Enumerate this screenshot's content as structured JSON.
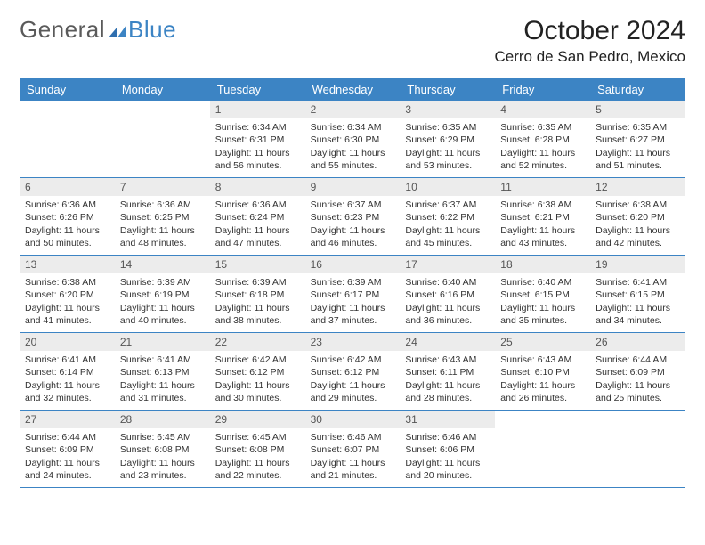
{
  "logo": {
    "general": "General",
    "blue": "Blue"
  },
  "header": {
    "title": "October 2024",
    "location": "Cerro de San Pedro, Mexico"
  },
  "colors": {
    "header_bg": "#3c84c4",
    "header_text": "#ffffff",
    "daynum_bg": "#ececec",
    "row_border": "#3c84c4",
    "logo_gray": "#5a5a5a",
    "logo_blue": "#3c84c4"
  },
  "weekdays": [
    "Sunday",
    "Monday",
    "Tuesday",
    "Wednesday",
    "Thursday",
    "Friday",
    "Saturday"
  ],
  "weeks": [
    [
      {
        "day": "",
        "sunrise": "",
        "sunset": "",
        "daylight": ""
      },
      {
        "day": "",
        "sunrise": "",
        "sunset": "",
        "daylight": ""
      },
      {
        "day": "1",
        "sunrise": "Sunrise: 6:34 AM",
        "sunset": "Sunset: 6:31 PM",
        "daylight": "Daylight: 11 hours and 56 minutes."
      },
      {
        "day": "2",
        "sunrise": "Sunrise: 6:34 AM",
        "sunset": "Sunset: 6:30 PM",
        "daylight": "Daylight: 11 hours and 55 minutes."
      },
      {
        "day": "3",
        "sunrise": "Sunrise: 6:35 AM",
        "sunset": "Sunset: 6:29 PM",
        "daylight": "Daylight: 11 hours and 53 minutes."
      },
      {
        "day": "4",
        "sunrise": "Sunrise: 6:35 AM",
        "sunset": "Sunset: 6:28 PM",
        "daylight": "Daylight: 11 hours and 52 minutes."
      },
      {
        "day": "5",
        "sunrise": "Sunrise: 6:35 AM",
        "sunset": "Sunset: 6:27 PM",
        "daylight": "Daylight: 11 hours and 51 minutes."
      }
    ],
    [
      {
        "day": "6",
        "sunrise": "Sunrise: 6:36 AM",
        "sunset": "Sunset: 6:26 PM",
        "daylight": "Daylight: 11 hours and 50 minutes."
      },
      {
        "day": "7",
        "sunrise": "Sunrise: 6:36 AM",
        "sunset": "Sunset: 6:25 PM",
        "daylight": "Daylight: 11 hours and 48 minutes."
      },
      {
        "day": "8",
        "sunrise": "Sunrise: 6:36 AM",
        "sunset": "Sunset: 6:24 PM",
        "daylight": "Daylight: 11 hours and 47 minutes."
      },
      {
        "day": "9",
        "sunrise": "Sunrise: 6:37 AM",
        "sunset": "Sunset: 6:23 PM",
        "daylight": "Daylight: 11 hours and 46 minutes."
      },
      {
        "day": "10",
        "sunrise": "Sunrise: 6:37 AM",
        "sunset": "Sunset: 6:22 PM",
        "daylight": "Daylight: 11 hours and 45 minutes."
      },
      {
        "day": "11",
        "sunrise": "Sunrise: 6:38 AM",
        "sunset": "Sunset: 6:21 PM",
        "daylight": "Daylight: 11 hours and 43 minutes."
      },
      {
        "day": "12",
        "sunrise": "Sunrise: 6:38 AM",
        "sunset": "Sunset: 6:20 PM",
        "daylight": "Daylight: 11 hours and 42 minutes."
      }
    ],
    [
      {
        "day": "13",
        "sunrise": "Sunrise: 6:38 AM",
        "sunset": "Sunset: 6:20 PM",
        "daylight": "Daylight: 11 hours and 41 minutes."
      },
      {
        "day": "14",
        "sunrise": "Sunrise: 6:39 AM",
        "sunset": "Sunset: 6:19 PM",
        "daylight": "Daylight: 11 hours and 40 minutes."
      },
      {
        "day": "15",
        "sunrise": "Sunrise: 6:39 AM",
        "sunset": "Sunset: 6:18 PM",
        "daylight": "Daylight: 11 hours and 38 minutes."
      },
      {
        "day": "16",
        "sunrise": "Sunrise: 6:39 AM",
        "sunset": "Sunset: 6:17 PM",
        "daylight": "Daylight: 11 hours and 37 minutes."
      },
      {
        "day": "17",
        "sunrise": "Sunrise: 6:40 AM",
        "sunset": "Sunset: 6:16 PM",
        "daylight": "Daylight: 11 hours and 36 minutes."
      },
      {
        "day": "18",
        "sunrise": "Sunrise: 6:40 AM",
        "sunset": "Sunset: 6:15 PM",
        "daylight": "Daylight: 11 hours and 35 minutes."
      },
      {
        "day": "19",
        "sunrise": "Sunrise: 6:41 AM",
        "sunset": "Sunset: 6:15 PM",
        "daylight": "Daylight: 11 hours and 34 minutes."
      }
    ],
    [
      {
        "day": "20",
        "sunrise": "Sunrise: 6:41 AM",
        "sunset": "Sunset: 6:14 PM",
        "daylight": "Daylight: 11 hours and 32 minutes."
      },
      {
        "day": "21",
        "sunrise": "Sunrise: 6:41 AM",
        "sunset": "Sunset: 6:13 PM",
        "daylight": "Daylight: 11 hours and 31 minutes."
      },
      {
        "day": "22",
        "sunrise": "Sunrise: 6:42 AM",
        "sunset": "Sunset: 6:12 PM",
        "daylight": "Daylight: 11 hours and 30 minutes."
      },
      {
        "day": "23",
        "sunrise": "Sunrise: 6:42 AM",
        "sunset": "Sunset: 6:12 PM",
        "daylight": "Daylight: 11 hours and 29 minutes."
      },
      {
        "day": "24",
        "sunrise": "Sunrise: 6:43 AM",
        "sunset": "Sunset: 6:11 PM",
        "daylight": "Daylight: 11 hours and 28 minutes."
      },
      {
        "day": "25",
        "sunrise": "Sunrise: 6:43 AM",
        "sunset": "Sunset: 6:10 PM",
        "daylight": "Daylight: 11 hours and 26 minutes."
      },
      {
        "day": "26",
        "sunrise": "Sunrise: 6:44 AM",
        "sunset": "Sunset: 6:09 PM",
        "daylight": "Daylight: 11 hours and 25 minutes."
      }
    ],
    [
      {
        "day": "27",
        "sunrise": "Sunrise: 6:44 AM",
        "sunset": "Sunset: 6:09 PM",
        "daylight": "Daylight: 11 hours and 24 minutes."
      },
      {
        "day": "28",
        "sunrise": "Sunrise: 6:45 AM",
        "sunset": "Sunset: 6:08 PM",
        "daylight": "Daylight: 11 hours and 23 minutes."
      },
      {
        "day": "29",
        "sunrise": "Sunrise: 6:45 AM",
        "sunset": "Sunset: 6:08 PM",
        "daylight": "Daylight: 11 hours and 22 minutes."
      },
      {
        "day": "30",
        "sunrise": "Sunrise: 6:46 AM",
        "sunset": "Sunset: 6:07 PM",
        "daylight": "Daylight: 11 hours and 21 minutes."
      },
      {
        "day": "31",
        "sunrise": "Sunrise: 6:46 AM",
        "sunset": "Sunset: 6:06 PM",
        "daylight": "Daylight: 11 hours and 20 minutes."
      },
      {
        "day": "",
        "sunrise": "",
        "sunset": "",
        "daylight": ""
      },
      {
        "day": "",
        "sunrise": "",
        "sunset": "",
        "daylight": ""
      }
    ]
  ]
}
